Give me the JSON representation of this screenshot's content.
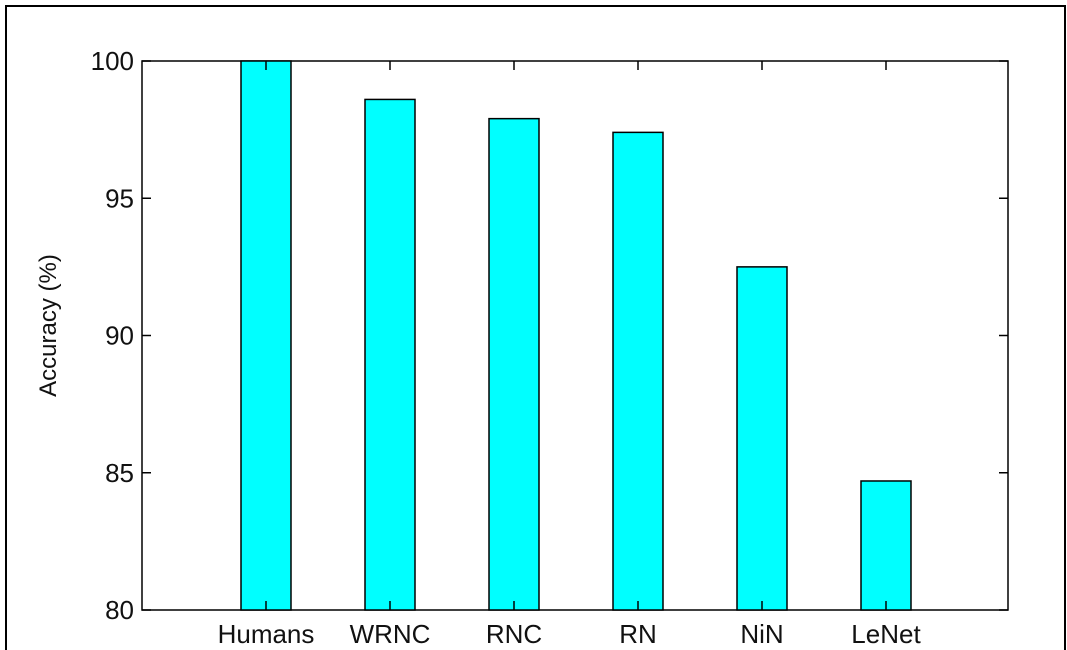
{
  "chart_data": {
    "type": "bar",
    "title": "",
    "xlabel": "",
    "ylabel": "Accuracy (%)",
    "categories": [
      "Humans",
      "WRNC",
      "RNC",
      "RN",
      "NiN",
      "LeNet"
    ],
    "values": [
      100.0,
      98.6,
      97.9,
      97.4,
      92.5,
      84.7
    ],
    "ylim": [
      80,
      100
    ],
    "yticks": [
      80,
      85,
      90,
      95,
      100
    ],
    "ytick_labels": [
      "80",
      "85",
      "90",
      "95",
      "100"
    ],
    "bar_color": "#00ffff",
    "bar_edge_color": "#000000",
    "grid": false,
    "legend": null
  }
}
